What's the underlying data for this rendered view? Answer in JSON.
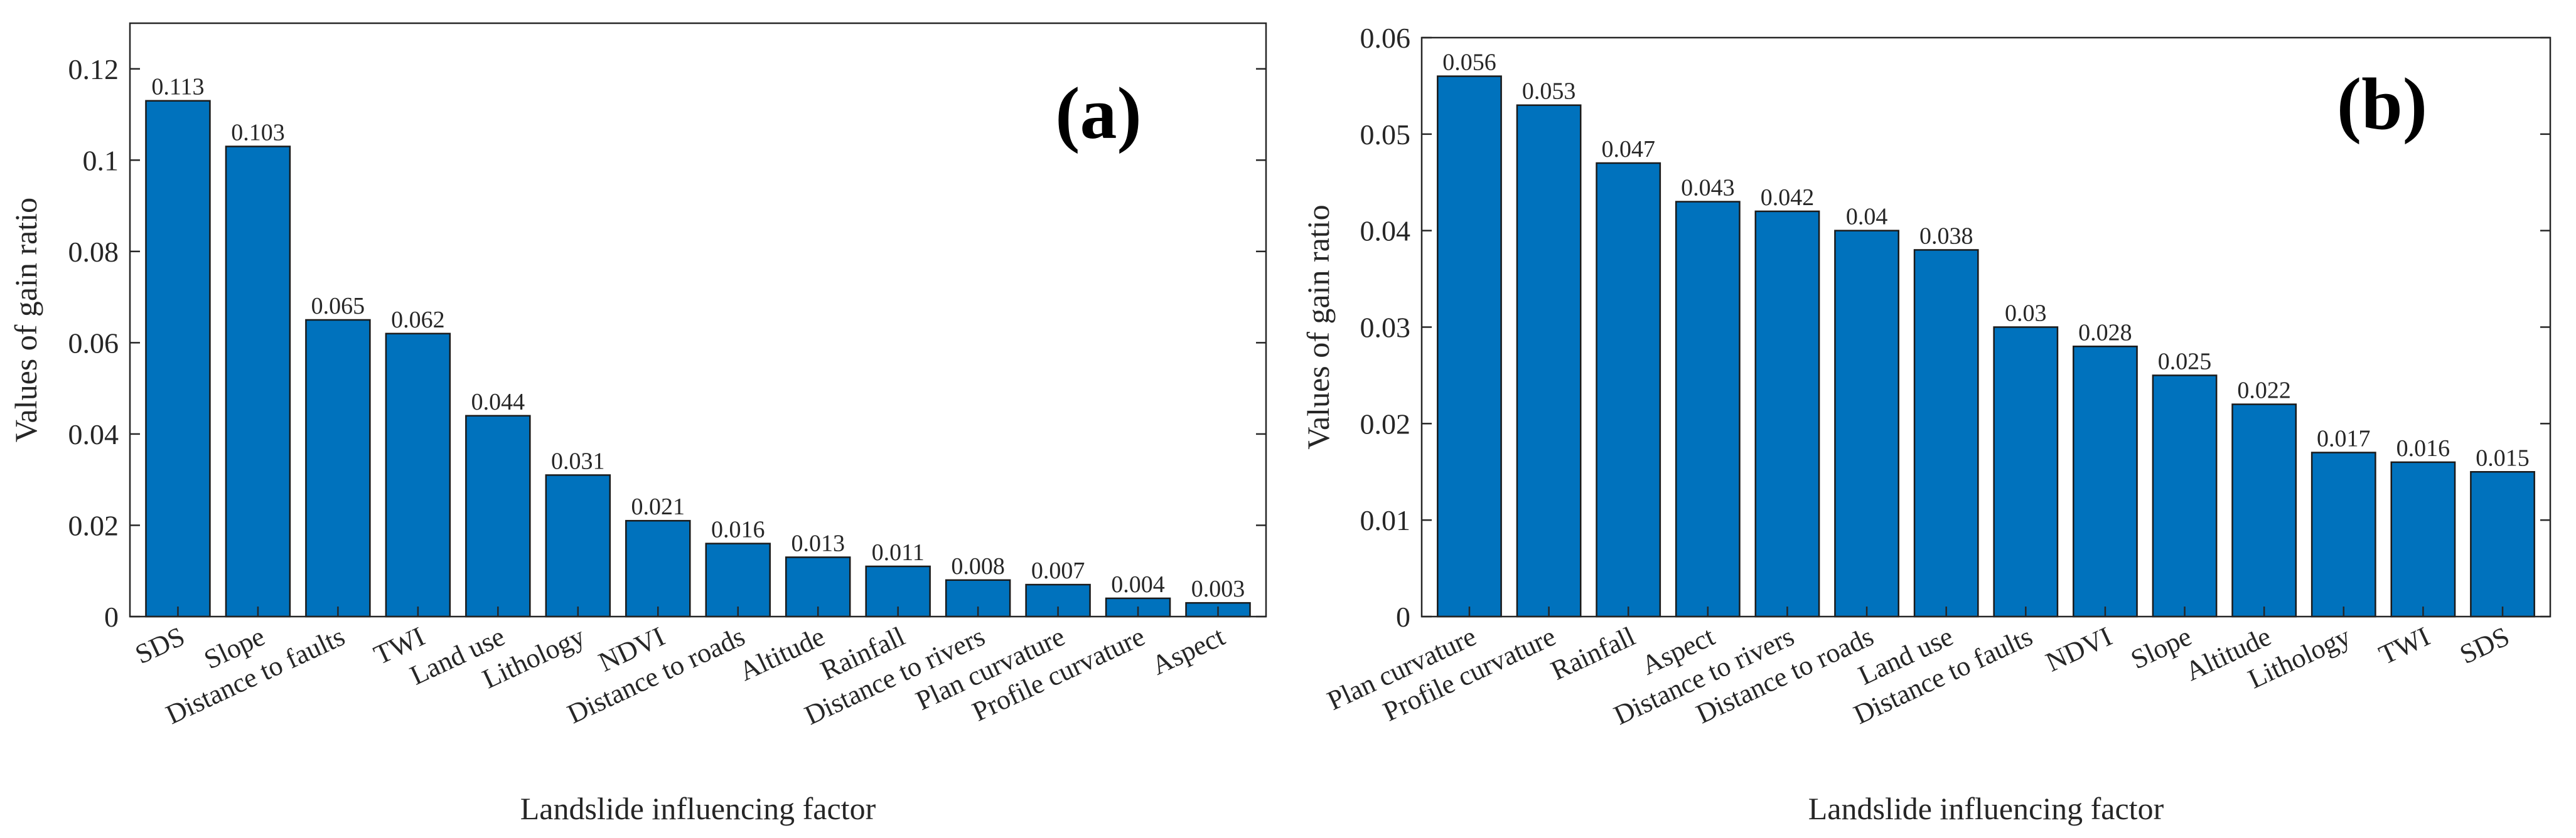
{
  "colors": {
    "bar": "#0072BD",
    "bar_edge": "#1a1a1a",
    "axis": "#262626",
    "text": "#262626"
  },
  "chart_data": [
    {
      "type": "bar",
      "panel_label": "(a)",
      "xlabel": "Landslide influencing factor",
      "ylabel": "Values of gain ratio",
      "ylim": [
        0,
        0.13
      ],
      "yticks": [
        0,
        0.02,
        0.04,
        0.06,
        0.08,
        0.1,
        0.12
      ],
      "ytick_labels": [
        "0",
        "0.02",
        "0.04",
        "0.06",
        "0.08",
        "0.1",
        "0.12"
      ],
      "categories": [
        "SDS",
        "Slope",
        "Distance to faults",
        "TWI",
        "Land use",
        "Lithology",
        "NDVI",
        "Distance to roads",
        "Altitude",
        "Rainfall",
        "Distance to rivers",
        "Plan curvature",
        "Profile curvature",
        "Aspect"
      ],
      "values": [
        0.113,
        0.103,
        0.065,
        0.062,
        0.044,
        0.031,
        0.021,
        0.016,
        0.013,
        0.011,
        0.008,
        0.007,
        0.004,
        0.003
      ],
      "value_labels": [
        "0.113",
        "0.103",
        "0.065",
        "0.062",
        "0.044",
        "0.031",
        "0.021",
        "0.016",
        "0.013",
        "0.011",
        "0.008",
        "0.007",
        "0.004",
        "0.003"
      ]
    },
    {
      "type": "bar",
      "panel_label": "(b)",
      "xlabel": "Landslide influencing factor",
      "ylabel": "Values of gain ratio",
      "ylim": [
        0,
        0.06
      ],
      "yticks": [
        0,
        0.01,
        0.02,
        0.03,
        0.04,
        0.05,
        0.06
      ],
      "ytick_labels": [
        "0",
        "0.01",
        "0.02",
        "0.03",
        "0.04",
        "0.05",
        "0.06"
      ],
      "categories": [
        "Plan curvature",
        "Profile curvature",
        "Rainfall",
        "Aspect",
        "Distance to rivers",
        "Distance to roads",
        "Land use",
        "Distance to faults",
        "NDVI",
        "Slope",
        "Altitude",
        "Lithology",
        "TWI",
        "SDS"
      ],
      "values": [
        0.056,
        0.053,
        0.047,
        0.043,
        0.042,
        0.04,
        0.038,
        0.03,
        0.028,
        0.025,
        0.022,
        0.017,
        0.016,
        0.015
      ],
      "value_labels": [
        "0.056",
        "0.053",
        "0.047",
        "0.043",
        "0.042",
        "0.04",
        "0.038",
        "0.03",
        "0.028",
        "0.025",
        "0.022",
        "0.017",
        "0.016",
        "0.015"
      ]
    }
  ]
}
